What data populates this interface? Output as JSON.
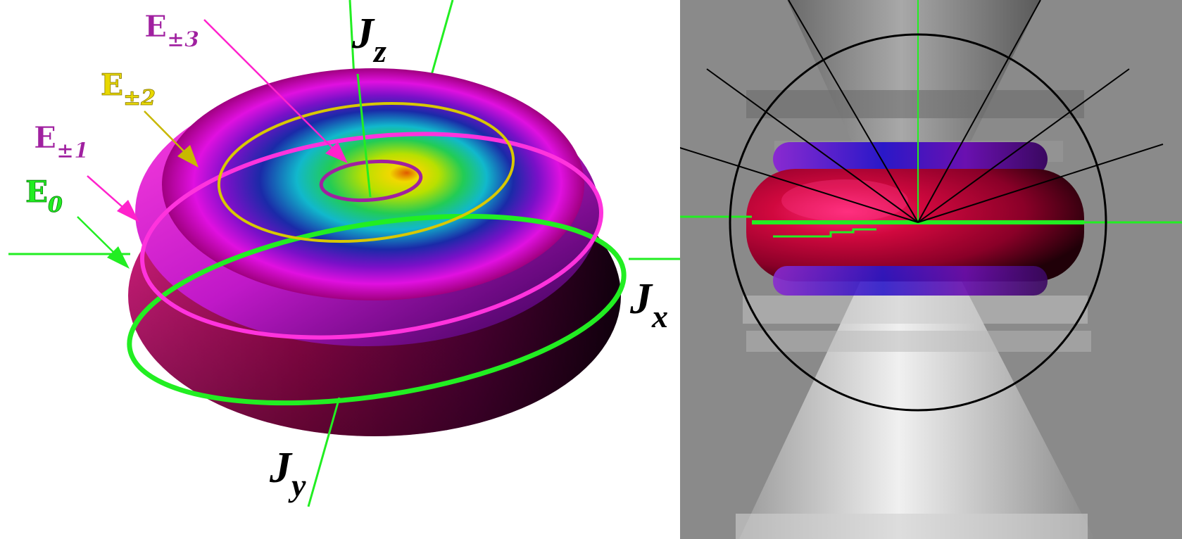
{
  "labels": {
    "e3": {
      "base": "E",
      "sub": "±3"
    },
    "e2": {
      "base": "E",
      "sub": "±2"
    },
    "e1": {
      "base": "E",
      "sub": "±1"
    },
    "e0": {
      "base": "E",
      "sub": "0"
    }
  },
  "axes": {
    "z": {
      "base": "J",
      "sub": "z"
    },
    "x": {
      "base": "J",
      "sub": "x"
    },
    "y": {
      "base": "J",
      "sub": "y"
    }
  },
  "colors": {
    "e3": "#a020a0",
    "e2": "#d8c800",
    "e1": "#ff33dd",
    "e0": "#22ee22",
    "axis": "#22ee22",
    "right_panel_bg": "#8a8a8a"
  },
  "icons": {
    "left_panel": "rotor-energy-surface-3d",
    "right_panel": "rotor-energy-surface-section-with-cones"
  }
}
